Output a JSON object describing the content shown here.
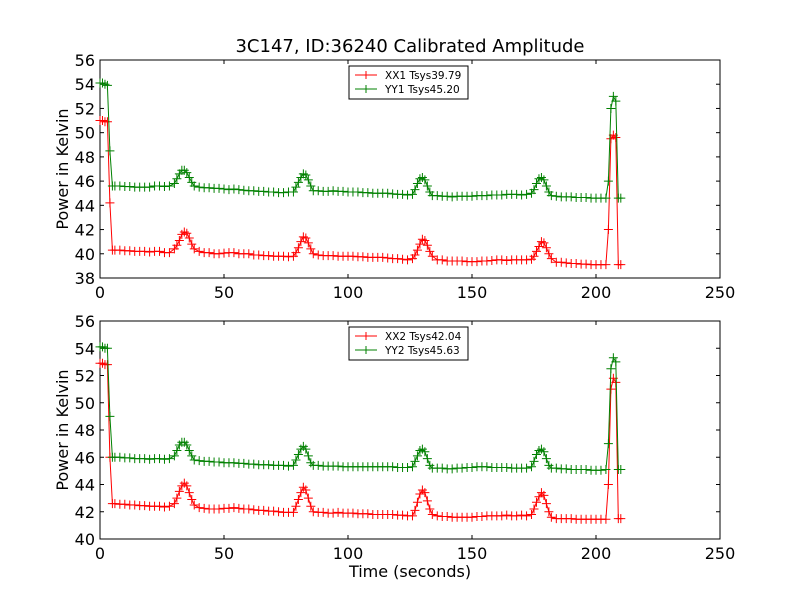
{
  "figure_title": "3C147, ID:36240 Calibrated Amplitude",
  "colors": {
    "series_red": "#ff0000",
    "series_green": "#008000",
    "axes": "#000000"
  },
  "chart_data": [
    {
      "type": "line",
      "title": "3C147, ID:36240 Calibrated Amplitude",
      "xlabel": "",
      "ylabel": "Power in Kelvin",
      "xlim": [
        0,
        250
      ],
      "ylim": [
        38,
        56
      ],
      "xticks": [
        0,
        50,
        100,
        150,
        200,
        250
      ],
      "yticks": [
        38,
        40,
        42,
        44,
        46,
        48,
        50,
        52,
        54,
        56
      ],
      "grid": false,
      "legend": "top-center",
      "series": [
        {
          "name": "XX1 Tsys39.79",
          "color": "#ff0000",
          "marker": "+",
          "x": [
            0,
            1,
            2,
            3,
            4,
            5,
            6,
            8,
            10,
            12,
            14,
            16,
            18,
            20,
            22,
            24,
            26,
            28,
            30,
            31,
            32,
            33,
            34,
            35,
            36,
            37,
            38,
            40,
            42,
            44,
            46,
            48,
            50,
            52,
            54,
            56,
            58,
            60,
            62,
            64,
            66,
            68,
            70,
            72,
            74,
            76,
            78,
            79,
            80,
            81,
            82,
            83,
            84,
            85,
            86,
            88,
            90,
            92,
            94,
            96,
            98,
            100,
            102,
            104,
            106,
            108,
            110,
            112,
            114,
            116,
            118,
            120,
            122,
            124,
            126,
            127,
            128,
            129,
            130,
            131,
            132,
            133,
            134,
            136,
            138,
            140,
            142,
            144,
            146,
            148,
            150,
            152,
            154,
            156,
            158,
            160,
            162,
            164,
            166,
            168,
            170,
            172,
            174,
            175,
            176,
            177,
            178,
            179,
            180,
            181,
            182,
            184,
            186,
            188,
            190,
            192,
            194,
            196,
            198,
            200,
            202,
            204,
            205,
            206,
            207,
            208,
            209,
            210
          ],
          "y": [
            51.0,
            51.0,
            50.9,
            50.9,
            44.2,
            40.3,
            40.3,
            40.3,
            40.25,
            40.25,
            40.2,
            40.2,
            40.2,
            40.15,
            40.2,
            40.2,
            40.1,
            40.1,
            40.4,
            40.7,
            41.1,
            41.6,
            41.8,
            41.7,
            41.3,
            40.8,
            40.4,
            40.2,
            40.1,
            40.1,
            40.0,
            40.0,
            40.05,
            40.1,
            40.1,
            40.0,
            40.0,
            40.0,
            39.9,
            39.9,
            39.85,
            39.85,
            39.8,
            39.8,
            39.8,
            39.75,
            39.8,
            40.1,
            40.5,
            41.0,
            41.4,
            41.3,
            40.9,
            40.4,
            40.0,
            39.9,
            39.85,
            39.85,
            39.85,
            39.8,
            39.8,
            39.8,
            39.8,
            39.75,
            39.75,
            39.7,
            39.7,
            39.7,
            39.7,
            39.65,
            39.6,
            39.6,
            39.55,
            39.5,
            39.6,
            39.9,
            40.3,
            40.8,
            41.2,
            41.1,
            40.7,
            40.2,
            39.8,
            39.5,
            39.5,
            39.4,
            39.4,
            39.4,
            39.4,
            39.35,
            39.35,
            39.35,
            39.4,
            39.4,
            39.45,
            39.5,
            39.5,
            39.45,
            39.5,
            39.5,
            39.5,
            39.5,
            39.55,
            39.8,
            40.2,
            40.6,
            41.0,
            40.9,
            40.5,
            40.0,
            39.6,
            39.3,
            39.3,
            39.25,
            39.2,
            39.2,
            39.15,
            39.15,
            39.1,
            39.1,
            39.1,
            39.1,
            42.0,
            49.5,
            49.8,
            49.6,
            39.1,
            39.1
          ],
          "points": 128
        },
        {
          "name": "YY1 Tsys45.20",
          "color": "#008000",
          "marker": "+",
          "x": [
            0,
            1,
            2,
            3,
            4,
            5,
            6,
            8,
            10,
            12,
            14,
            16,
            18,
            20,
            22,
            24,
            26,
            28,
            30,
            31,
            32,
            33,
            34,
            35,
            36,
            37,
            38,
            40,
            42,
            44,
            46,
            48,
            50,
            52,
            54,
            56,
            58,
            60,
            62,
            64,
            66,
            68,
            70,
            72,
            74,
            76,
            78,
            79,
            80,
            81,
            82,
            83,
            84,
            85,
            86,
            88,
            90,
            92,
            94,
            96,
            98,
            100,
            102,
            104,
            106,
            108,
            110,
            112,
            114,
            116,
            118,
            120,
            122,
            124,
            126,
            127,
            128,
            129,
            130,
            131,
            132,
            133,
            134,
            136,
            138,
            140,
            142,
            144,
            146,
            148,
            150,
            152,
            154,
            156,
            158,
            160,
            162,
            164,
            166,
            168,
            170,
            172,
            174,
            175,
            176,
            177,
            178,
            179,
            180,
            181,
            182,
            184,
            186,
            188,
            190,
            192,
            194,
            196,
            198,
            200,
            202,
            204,
            205,
            206,
            207,
            208,
            209,
            210
          ],
          "y": [
            54.1,
            54.1,
            54.0,
            53.9,
            48.5,
            45.6,
            45.6,
            45.6,
            45.55,
            45.55,
            45.5,
            45.5,
            45.5,
            45.5,
            45.6,
            45.6,
            45.55,
            45.6,
            45.8,
            46.2,
            46.6,
            46.9,
            46.9,
            46.7,
            46.3,
            45.9,
            45.6,
            45.5,
            45.45,
            45.45,
            45.4,
            45.4,
            45.35,
            45.3,
            45.35,
            45.3,
            45.25,
            45.2,
            45.2,
            45.15,
            45.15,
            45.1,
            45.1,
            45.05,
            45.05,
            45.1,
            45.1,
            45.5,
            45.9,
            46.3,
            46.6,
            46.5,
            46.1,
            45.6,
            45.2,
            45.2,
            45.15,
            45.15,
            45.2,
            45.15,
            45.15,
            45.1,
            45.1,
            45.1,
            45.05,
            45.05,
            45.0,
            45.0,
            45.0,
            45.0,
            44.95,
            44.9,
            44.9,
            44.85,
            44.9,
            45.3,
            45.8,
            46.2,
            46.3,
            46.1,
            45.6,
            45.1,
            44.8,
            44.8,
            44.75,
            44.75,
            44.7,
            44.75,
            44.75,
            44.75,
            44.75,
            44.8,
            44.8,
            44.8,
            44.85,
            44.85,
            44.85,
            44.9,
            44.9,
            44.9,
            44.85,
            44.9,
            45.0,
            45.3,
            45.8,
            46.2,
            46.3,
            46.1,
            45.6,
            45.1,
            44.8,
            44.75,
            44.7,
            44.7,
            44.7,
            44.65,
            44.65,
            44.65,
            44.6,
            44.6,
            44.6,
            44.6,
            46.0,
            52.0,
            53.0,
            52.6,
            44.6,
            44.6
          ],
          "points": 128
        }
      ]
    },
    {
      "type": "line",
      "title": "",
      "xlabel": "Time (seconds)",
      "ylabel": "Power in Kelvin",
      "xlim": [
        0,
        250
      ],
      "ylim": [
        40,
        56
      ],
      "xticks": [
        0,
        50,
        100,
        150,
        200,
        250
      ],
      "yticks": [
        40,
        42,
        44,
        46,
        48,
        50,
        52,
        54,
        56
      ],
      "grid": false,
      "legend": "top-center",
      "series": [
        {
          "name": "XX2 Tsys42.04",
          "color": "#ff0000",
          "marker": "+",
          "x": [
            0,
            1,
            2,
            3,
            4,
            5,
            6,
            8,
            10,
            12,
            14,
            16,
            18,
            20,
            22,
            24,
            26,
            28,
            30,
            31,
            32,
            33,
            34,
            35,
            36,
            37,
            38,
            40,
            42,
            44,
            46,
            48,
            50,
            52,
            54,
            56,
            58,
            60,
            62,
            64,
            66,
            68,
            70,
            72,
            74,
            76,
            78,
            79,
            80,
            81,
            82,
            83,
            84,
            85,
            86,
            88,
            90,
            92,
            94,
            96,
            98,
            100,
            102,
            104,
            106,
            108,
            110,
            112,
            114,
            116,
            118,
            120,
            122,
            124,
            126,
            127,
            128,
            129,
            130,
            131,
            132,
            133,
            134,
            136,
            138,
            140,
            142,
            144,
            146,
            148,
            150,
            152,
            154,
            156,
            158,
            160,
            162,
            164,
            166,
            168,
            170,
            172,
            174,
            175,
            176,
            177,
            178,
            179,
            180,
            181,
            182,
            184,
            186,
            188,
            190,
            192,
            194,
            196,
            198,
            200,
            202,
            204,
            205,
            206,
            207,
            208,
            209,
            210
          ],
          "y": [
            52.9,
            52.9,
            52.8,
            52.8,
            46.0,
            42.6,
            42.6,
            42.55,
            42.55,
            42.5,
            42.5,
            42.45,
            42.45,
            42.4,
            42.4,
            42.4,
            42.35,
            42.4,
            42.6,
            43.0,
            43.5,
            43.9,
            44.1,
            43.9,
            43.4,
            42.9,
            42.5,
            42.3,
            42.25,
            42.2,
            42.2,
            42.2,
            42.25,
            42.25,
            42.3,
            42.25,
            42.2,
            42.2,
            42.15,
            42.1,
            42.1,
            42.05,
            42.05,
            42.0,
            41.95,
            41.95,
            41.95,
            42.4,
            42.9,
            43.4,
            43.8,
            43.6,
            43.0,
            42.4,
            42.0,
            41.95,
            41.95,
            41.9,
            41.9,
            41.95,
            41.9,
            41.9,
            41.9,
            41.85,
            41.85,
            41.85,
            41.8,
            41.8,
            41.8,
            41.8,
            41.8,
            41.75,
            41.75,
            41.7,
            41.7,
            42.1,
            42.7,
            43.3,
            43.6,
            43.4,
            42.8,
            42.2,
            41.8,
            41.7,
            41.65,
            41.65,
            41.6,
            41.6,
            41.6,
            41.6,
            41.6,
            41.65,
            41.65,
            41.7,
            41.7,
            41.7,
            41.7,
            41.75,
            41.7,
            41.7,
            41.75,
            41.7,
            41.8,
            42.2,
            42.7,
            43.1,
            43.4,
            43.2,
            42.6,
            42.0,
            41.6,
            41.5,
            41.5,
            41.5,
            41.5,
            41.45,
            41.45,
            41.45,
            41.45,
            41.45,
            41.45,
            41.45,
            44.0,
            51.0,
            51.8,
            51.5,
            41.5,
            41.5
          ],
          "points": 128
        },
        {
          "name": "YY2 Tsys45.63",
          "color": "#008000",
          "marker": "+",
          "x": [
            0,
            1,
            2,
            3,
            4,
            5,
            6,
            8,
            10,
            12,
            14,
            16,
            18,
            20,
            22,
            24,
            26,
            28,
            30,
            31,
            32,
            33,
            34,
            35,
            36,
            37,
            38,
            40,
            42,
            44,
            46,
            48,
            50,
            52,
            54,
            56,
            58,
            60,
            62,
            64,
            66,
            68,
            70,
            72,
            74,
            76,
            78,
            79,
            80,
            81,
            82,
            83,
            84,
            85,
            86,
            88,
            90,
            92,
            94,
            96,
            98,
            100,
            102,
            104,
            106,
            108,
            110,
            112,
            114,
            116,
            118,
            120,
            122,
            124,
            126,
            127,
            128,
            129,
            130,
            131,
            132,
            133,
            134,
            136,
            138,
            140,
            142,
            144,
            146,
            148,
            150,
            152,
            154,
            156,
            158,
            160,
            162,
            164,
            166,
            168,
            170,
            172,
            174,
            175,
            176,
            177,
            178,
            179,
            180,
            181,
            182,
            184,
            186,
            188,
            190,
            192,
            194,
            196,
            198,
            200,
            202,
            204,
            205,
            206,
            207,
            208,
            209,
            210
          ],
          "y": [
            54.1,
            54.1,
            54.0,
            54.0,
            49.0,
            46.0,
            46.0,
            46.0,
            45.95,
            45.95,
            45.9,
            45.9,
            45.9,
            45.85,
            45.9,
            45.9,
            45.85,
            45.9,
            46.1,
            46.5,
            46.9,
            47.1,
            47.1,
            46.9,
            46.5,
            46.1,
            45.8,
            45.75,
            45.7,
            45.7,
            45.65,
            45.65,
            45.6,
            45.6,
            45.6,
            45.55,
            45.55,
            45.5,
            45.5,
            45.45,
            45.45,
            45.45,
            45.4,
            45.4,
            45.4,
            45.35,
            45.4,
            45.8,
            46.2,
            46.6,
            46.8,
            46.6,
            46.1,
            45.6,
            45.4,
            45.4,
            45.35,
            45.35,
            45.35,
            45.35,
            45.3,
            45.3,
            45.3,
            45.3,
            45.3,
            45.3,
            45.3,
            45.3,
            45.3,
            45.3,
            45.3,
            45.25,
            45.25,
            45.25,
            45.3,
            45.7,
            46.1,
            46.5,
            46.6,
            46.4,
            45.9,
            45.4,
            45.2,
            45.2,
            45.2,
            45.15,
            45.15,
            45.2,
            45.2,
            45.25,
            45.25,
            45.3,
            45.3,
            45.3,
            45.25,
            45.25,
            45.25,
            45.25,
            45.2,
            45.2,
            45.2,
            45.2,
            45.3,
            45.7,
            46.2,
            46.5,
            46.6,
            46.4,
            45.9,
            45.4,
            45.2,
            45.2,
            45.15,
            45.15,
            45.1,
            45.1,
            45.1,
            45.1,
            45.05,
            45.05,
            45.05,
            45.1,
            47.0,
            52.5,
            53.3,
            53.0,
            45.1,
            45.1
          ],
          "points": 128
        }
      ]
    }
  ]
}
